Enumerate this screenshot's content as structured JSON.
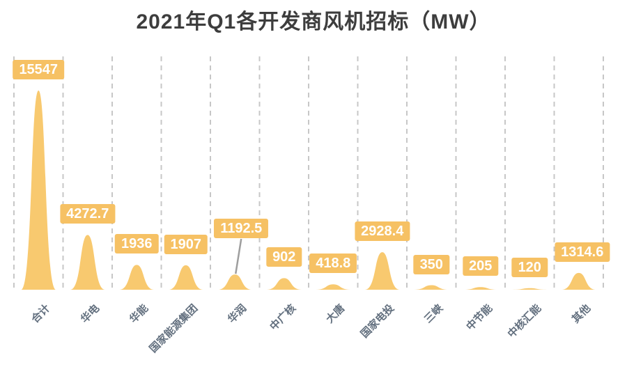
{
  "chart_data": {
    "type": "area",
    "title": "2021年Q1各开发商风机招标（MW）",
    "unit": "MW",
    "categories": [
      "合计",
      "华电",
      "华能",
      "国家能源集团",
      "华润",
      "中广核",
      "大唐",
      "国家电投",
      "三峡",
      "中节能",
      "中核汇能",
      "其他"
    ],
    "values": [
      15547,
      4272.7,
      1936,
      1907,
      1192.5,
      902,
      418.8,
      2928.4,
      350,
      205,
      120,
      1314.6
    ],
    "xlabel": "",
    "ylabel": "",
    "ylim": [
      0,
      15547
    ],
    "grid": "dashed-vertical-between-categories",
    "legend": "none",
    "x_label_rotation_deg": 45,
    "colors": {
      "peak_fill": "#F8C96F",
      "value_label_bg": "#F6C164",
      "value_label_text": "#FFFFFF",
      "title_text": "#3D3D3D",
      "axis_label_text": "#63707F",
      "gridline": "#C7C7C7",
      "connector_line": "#9E9E9E",
      "background": "#FFFFFF"
    },
    "label_overrides": {
      "4": {
        "dx": 9,
        "dy": -36,
        "connector": true
      },
      "11": {
        "dx": 5
      }
    }
  }
}
